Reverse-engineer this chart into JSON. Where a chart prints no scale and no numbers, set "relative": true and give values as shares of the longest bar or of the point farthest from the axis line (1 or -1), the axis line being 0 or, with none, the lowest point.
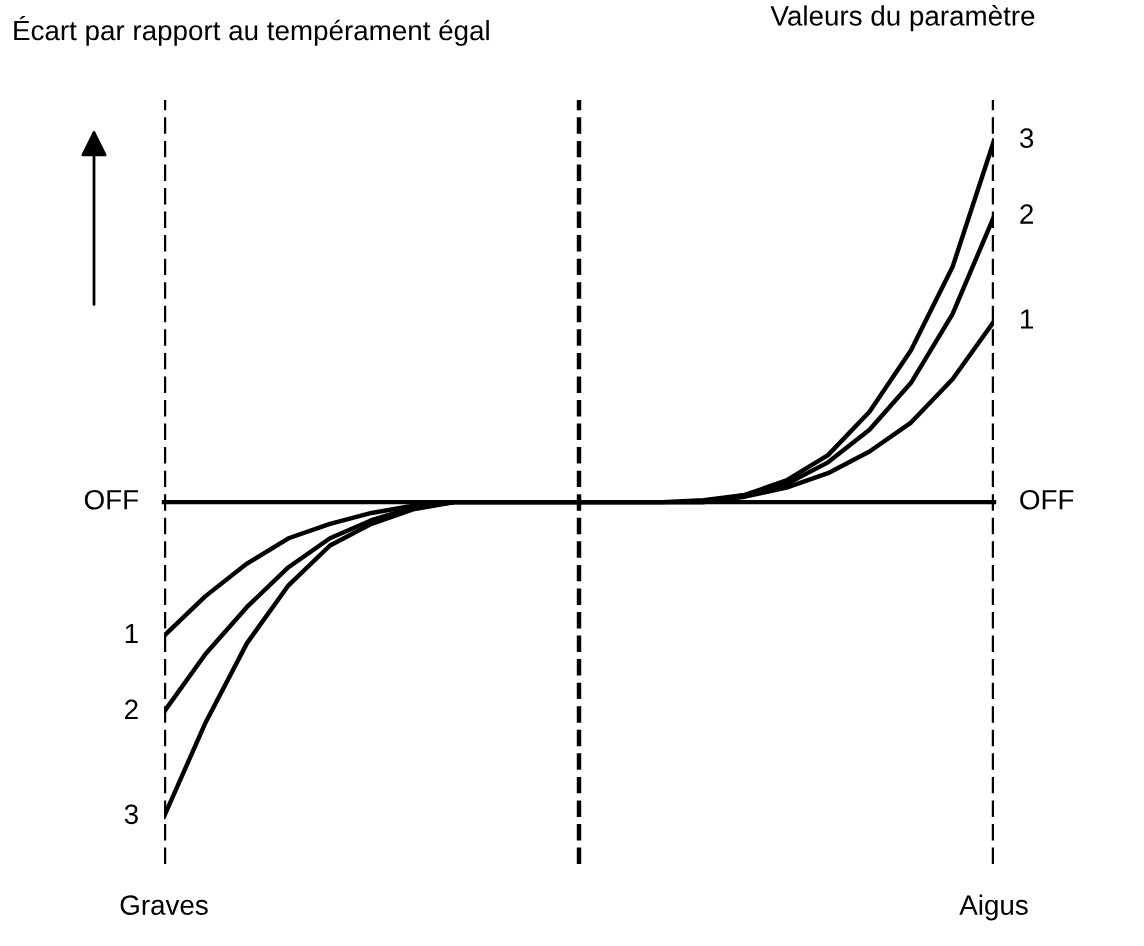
{
  "chart_data": {
    "type": "line",
    "relative": true,
    "ylabel": "Écart par rapport au tempérament égal",
    "legend": false,
    "marker": "none",
    "line_style": "solid",
    "categories": [
      null,
      null,
      null,
      null,
      null,
      null,
      null,
      null,
      null,
      null,
      null,
      null,
      null,
      null,
      null,
      null,
      null,
      null,
      null,
      null,
      null
    ],
    "series": [
      {
        "name": "1",
        "color": "#000000",
        "values": [
          -0.37,
          -0.26,
          -0.17,
          -0.1,
          -0.06,
          -0.03,
          -0.01,
          0,
          0,
          0,
          0,
          0,
          0,
          0,
          0.015,
          0.04,
          0.08,
          0.14,
          0.22,
          0.34,
          0.5
        ]
      },
      {
        "name": "2",
        "color": "#000000",
        "values": [
          -0.58,
          -0.42,
          -0.29,
          -0.18,
          -0.1,
          -0.05,
          -0.015,
          0,
          0,
          0,
          0,
          0,
          0,
          0,
          0.02,
          0.05,
          0.11,
          0.2,
          0.33,
          0.52,
          0.79
        ]
      },
      {
        "name": "3",
        "color": "#000000",
        "values": [
          -0.87,
          -0.61,
          -0.39,
          -0.23,
          -0.12,
          -0.06,
          -0.02,
          0,
          0,
          0,
          0,
          0,
          0,
          0.005,
          0.02,
          0.06,
          0.13,
          0.25,
          0.42,
          0.65,
          1
        ]
      }
    ],
    "annotations": [
      "Valeurs du paramètre",
      "Graves",
      "Aigus",
      "OFF",
      "OFF"
    ]
  }
}
